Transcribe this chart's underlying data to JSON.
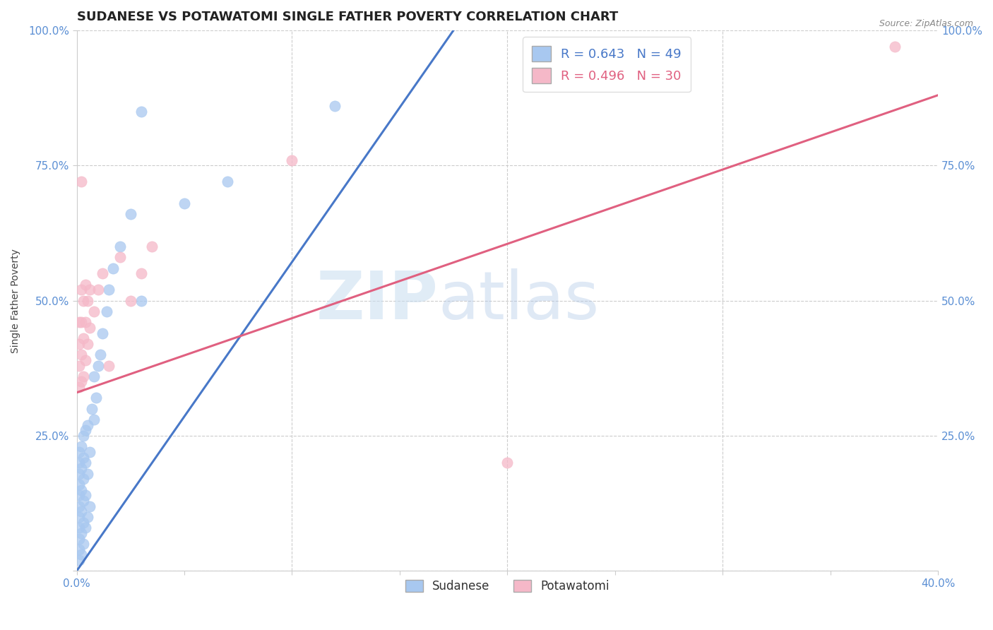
{
  "title": "SUDANESE VS POTAWATOMI SINGLE FATHER POVERTY CORRELATION CHART",
  "source_text": "Source: ZipAtlas.com",
  "ylabel": "Single Father Poverty",
  "xlim": [
    0.0,
    0.4
  ],
  "ylim": [
    0.0,
    1.0
  ],
  "xticks": [
    0.0,
    0.05,
    0.1,
    0.15,
    0.2,
    0.25,
    0.3,
    0.35,
    0.4
  ],
  "yticks": [
    0.0,
    0.25,
    0.5,
    0.75,
    1.0
  ],
  "blue_color": "#a8c8f0",
  "pink_color": "#f5b8c8",
  "blue_line_color": "#4878c8",
  "pink_line_color": "#e06080",
  "R_blue": 0.643,
  "N_blue": 49,
  "R_pink": 0.496,
  "N_pink": 30,
  "legend_label_blue": "Sudanese",
  "legend_label_pink": "Potawatomi",
  "watermark_zip": "ZIP",
  "watermark_atlas": "atlas",
  "title_fontsize": 13,
  "axis_label_fontsize": 10,
  "tick_fontsize": 11,
  "tick_color": "#5b8fd4",
  "blue_scatter": [
    [
      0.001,
      0.02
    ],
    [
      0.001,
      0.04
    ],
    [
      0.001,
      0.06
    ],
    [
      0.001,
      0.08
    ],
    [
      0.001,
      0.1
    ],
    [
      0.001,
      0.12
    ],
    [
      0.001,
      0.14
    ],
    [
      0.001,
      0.16
    ],
    [
      0.001,
      0.18
    ],
    [
      0.001,
      0.2
    ],
    [
      0.001,
      0.22
    ],
    [
      0.002,
      0.03
    ],
    [
      0.002,
      0.07
    ],
    [
      0.002,
      0.11
    ],
    [
      0.002,
      0.15
    ],
    [
      0.002,
      0.19
    ],
    [
      0.002,
      0.23
    ],
    [
      0.003,
      0.05
    ],
    [
      0.003,
      0.09
    ],
    [
      0.003,
      0.13
    ],
    [
      0.003,
      0.17
    ],
    [
      0.003,
      0.21
    ],
    [
      0.003,
      0.25
    ],
    [
      0.004,
      0.08
    ],
    [
      0.004,
      0.14
    ],
    [
      0.004,
      0.2
    ],
    [
      0.004,
      0.26
    ],
    [
      0.005,
      0.1
    ],
    [
      0.005,
      0.18
    ],
    [
      0.005,
      0.27
    ],
    [
      0.006,
      0.12
    ],
    [
      0.006,
      0.22
    ],
    [
      0.007,
      0.3
    ],
    [
      0.008,
      0.28
    ],
    [
      0.008,
      0.36
    ],
    [
      0.009,
      0.32
    ],
    [
      0.01,
      0.38
    ],
    [
      0.011,
      0.4
    ],
    [
      0.012,
      0.44
    ],
    [
      0.014,
      0.48
    ],
    [
      0.015,
      0.52
    ],
    [
      0.017,
      0.56
    ],
    [
      0.02,
      0.6
    ],
    [
      0.025,
      0.66
    ],
    [
      0.03,
      0.5
    ],
    [
      0.05,
      0.68
    ],
    [
      0.07,
      0.72
    ],
    [
      0.12,
      0.86
    ],
    [
      0.03,
      0.85
    ]
  ],
  "pink_scatter": [
    [
      0.001,
      0.34
    ],
    [
      0.001,
      0.38
    ],
    [
      0.001,
      0.42
    ],
    [
      0.001,
      0.46
    ],
    [
      0.002,
      0.35
    ],
    [
      0.002,
      0.4
    ],
    [
      0.002,
      0.46
    ],
    [
      0.002,
      0.52
    ],
    [
      0.003,
      0.36
    ],
    [
      0.003,
      0.43
    ],
    [
      0.003,
      0.5
    ],
    [
      0.004,
      0.39
    ],
    [
      0.004,
      0.46
    ],
    [
      0.004,
      0.53
    ],
    [
      0.005,
      0.42
    ],
    [
      0.005,
      0.5
    ],
    [
      0.006,
      0.45
    ],
    [
      0.006,
      0.52
    ],
    [
      0.008,
      0.48
    ],
    [
      0.01,
      0.52
    ],
    [
      0.012,
      0.55
    ],
    [
      0.015,
      0.38
    ],
    [
      0.02,
      0.58
    ],
    [
      0.025,
      0.5
    ],
    [
      0.03,
      0.55
    ],
    [
      0.035,
      0.6
    ],
    [
      0.1,
      0.76
    ],
    [
      0.2,
      0.2
    ],
    [
      0.002,
      0.72
    ],
    [
      0.38,
      0.97
    ]
  ],
  "blue_line_x": [
    0.0,
    0.175
  ],
  "blue_line_y": [
    0.0,
    1.0
  ],
  "pink_line_x": [
    0.0,
    0.4
  ],
  "pink_line_y": [
    0.33,
    0.88
  ],
  "background_color": "#ffffff",
  "grid_color": "#cccccc"
}
